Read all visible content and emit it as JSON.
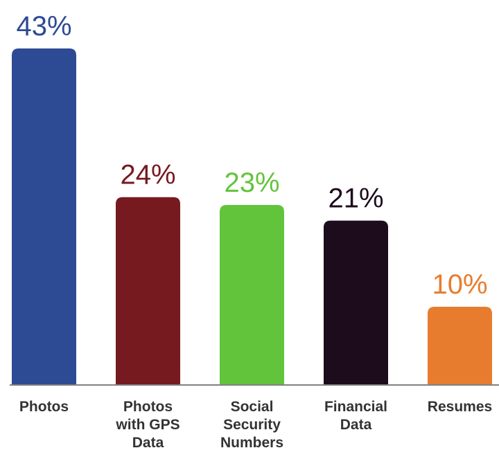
{
  "chart_data": {
    "type": "bar",
    "categories": [
      [
        "Photos"
      ],
      [
        "Photos",
        "with GPS",
        "Data"
      ],
      [
        "Social",
        "Security",
        "Numbers"
      ],
      [
        "Financial",
        "Data"
      ],
      [
        "Resumes"
      ]
    ],
    "values": [
      43,
      24,
      23,
      21,
      10
    ],
    "value_labels": [
      "43%",
      "24%",
      "23%",
      "21%",
      "10%"
    ],
    "colors": [
      "#2d4a94",
      "#761a1f",
      "#62c43b",
      "#1d0c1c",
      "#e77c2e"
    ],
    "ylim": [
      0,
      43
    ],
    "grid": false,
    "legend": "none"
  }
}
